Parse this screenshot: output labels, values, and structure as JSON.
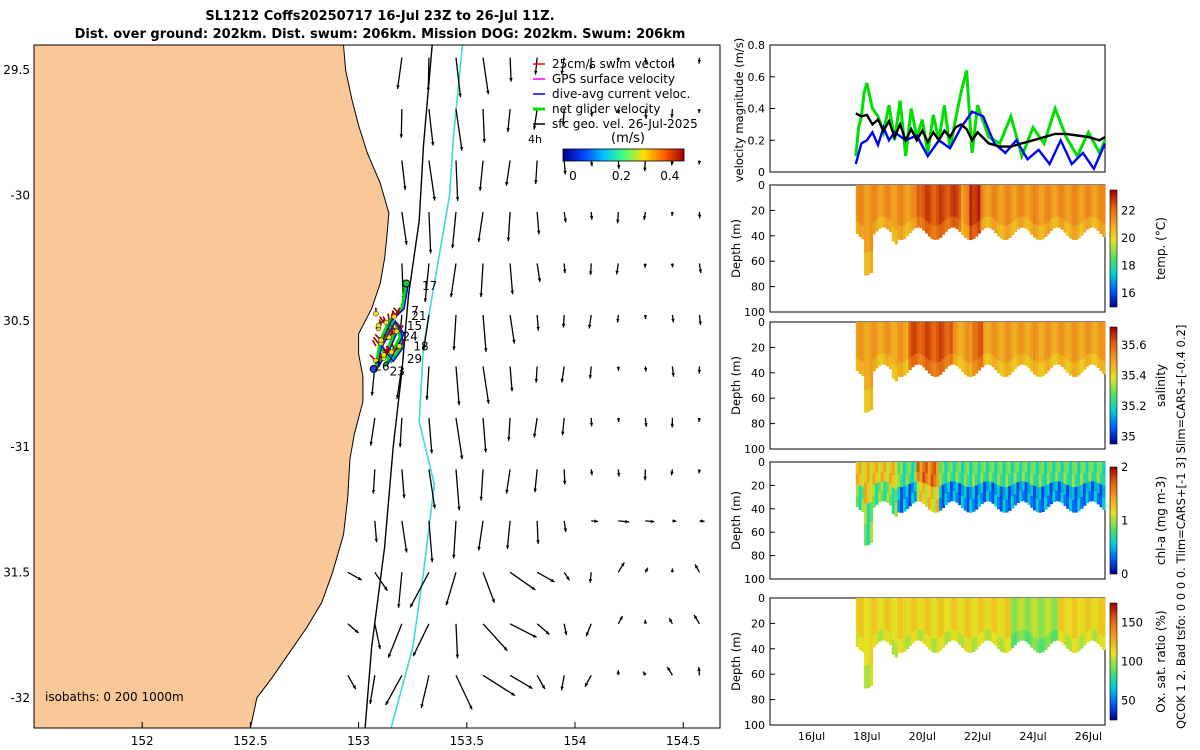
{
  "title": {
    "line1": "SL1212 Coffs20250717 16-Jul 23Z to 26-Jul 11Z.",
    "line2": "Dist. over ground: 202km. Dist. swum: 206km. Mission DOG: 202km. Swum: 206km"
  },
  "colors": {
    "land": "#fac898",
    "coastline": "#000000",
    "isobath_200": "#000000",
    "isobath_1000": "#40d8d8",
    "gps_velocity": "#ff00ff",
    "current": "#0000ff",
    "net_velocity": "#00e000",
    "swim": "#ff0000",
    "black": "#000000",
    "speed_cmap": [
      "#00008f",
      "#0040ff",
      "#00c0ff",
      "#40ff80",
      "#ffe000",
      "#ff6000",
      "#a00000"
    ],
    "temp_cmap": [
      "#00008f",
      "#0060ff",
      "#00d0d0",
      "#60e060",
      "#e8e020",
      "#f0a020",
      "#e06010",
      "#a00000"
    ]
  },
  "map": {
    "lon_ticks": [
      "152",
      "152.5",
      "153",
      "153.5",
      "154",
      "154.5"
    ],
    "lat_ticks": [
      "29.5",
      "-30",
      "30.5",
      "-31",
      "31.5",
      "-32"
    ],
    "lon_range": [
      151.5,
      154.67
    ],
    "lat_range": [
      -32.12,
      -29.4
    ],
    "isobaths_label": "isobaths: 0   200  1000m",
    "timer_label": "4h",
    "point_labels": [
      {
        "text": "17",
        "lon": 153.27,
        "lat": -30.36
      },
      {
        "text": "21",
        "lon": 153.22,
        "lat": -30.48
      },
      {
        "text": "7",
        "lon": 153.22,
        "lat": -30.46
      },
      {
        "text": "15",
        "lon": 153.2,
        "lat": -30.52
      },
      {
        "text": "24",
        "lon": 153.18,
        "lat": -30.56
      },
      {
        "text": "18",
        "lon": 153.23,
        "lat": -30.6
      },
      {
        "text": "29",
        "lon": 153.2,
        "lat": -30.65
      },
      {
        "text": "26",
        "lon": 153.05,
        "lat": -30.68
      },
      {
        "text": "23",
        "lon": 153.12,
        "lat": -30.7
      }
    ],
    "legend": [
      {
        "label": "25cm/s swim vector",
        "style": "swim"
      },
      {
        "label": "GPS surface velocity",
        "style": "gps_velocity"
      },
      {
        "label": "dive-avg current veloc.",
        "style": "current"
      },
      {
        "label": "net glider velocity",
        "style": "net_velocity"
      },
      {
        "label": "sfc geo. vel. 26-Jul-2025",
        "style": "black"
      }
    ],
    "colorbar": {
      "unit": "(m/s)",
      "ticks": [
        "0",
        "0.2",
        "0.4"
      ],
      "range": [
        0,
        0.5
      ]
    }
  },
  "chart_data": [
    {
      "type": "line",
      "title": "",
      "ylabel": "velocity magnitude (m/s)",
      "ylim": [
        0,
        0.8
      ],
      "y_ticks": [
        "0",
        "0.2",
        "0.4",
        "0.6",
        "0.8"
      ],
      "x_day_range": [
        14.5,
        26.6
      ],
      "series": [
        {
          "name": "net glider velocity",
          "color": "net_velocity",
          "x": [
            17.6,
            17.7,
            17.8,
            17.9,
            18.0,
            18.2,
            18.4,
            18.6,
            18.8,
            19.0,
            19.2,
            19.4,
            19.6,
            19.8,
            20.0,
            20.2,
            20.4,
            20.6,
            20.8,
            21.0,
            21.2,
            21.4,
            21.6,
            21.8,
            22.0,
            22.4,
            22.8,
            23.2,
            23.6,
            24.0,
            24.4,
            24.8,
            25.2,
            25.6,
            26.0,
            26.4,
            26.6
          ],
          "y": [
            0.1,
            0.28,
            0.35,
            0.5,
            0.56,
            0.4,
            0.35,
            0.25,
            0.42,
            0.2,
            0.45,
            0.1,
            0.4,
            0.22,
            0.33,
            0.12,
            0.36,
            0.2,
            0.42,
            0.15,
            0.33,
            0.5,
            0.64,
            0.12,
            0.42,
            0.22,
            0.18,
            0.35,
            0.1,
            0.28,
            0.18,
            0.4,
            0.22,
            0.1,
            0.25,
            0.12,
            0.2
          ]
        },
        {
          "name": "dive-avg current veloc.",
          "color": "current",
          "x": [
            17.6,
            17.8,
            18.0,
            18.2,
            18.4,
            18.6,
            18.8,
            19.0,
            19.4,
            19.8,
            20.2,
            20.6,
            21.0,
            21.4,
            21.8,
            22.2,
            22.6,
            23.0,
            23.4,
            23.8,
            24.2,
            24.6,
            25.0,
            25.4,
            25.8,
            26.2,
            26.6
          ],
          "y": [
            0.05,
            0.18,
            0.2,
            0.25,
            0.17,
            0.28,
            0.2,
            0.25,
            0.2,
            0.23,
            0.1,
            0.2,
            0.15,
            0.28,
            0.38,
            0.35,
            0.18,
            0.12,
            0.2,
            0.08,
            0.14,
            0.05,
            0.2,
            0.05,
            0.12,
            0.02,
            0.18
          ]
        },
        {
          "name": "sfc geo. vel.",
          "color": "black",
          "x": [
            17.6,
            17.8,
            18.0,
            18.2,
            18.4,
            18.6,
            18.8,
            19.0,
            19.2,
            19.4,
            19.6,
            19.8,
            20.0,
            20.2,
            20.4,
            20.6,
            20.8,
            21.0,
            21.2,
            21.4,
            21.6,
            21.8,
            22.0,
            22.4,
            22.8,
            23.2,
            23.6,
            24.0,
            24.4,
            24.8,
            25.2,
            25.6,
            26.0,
            26.4,
            26.6
          ],
          "y": [
            0.37,
            0.35,
            0.36,
            0.3,
            0.33,
            0.26,
            0.32,
            0.22,
            0.3,
            0.2,
            0.27,
            0.2,
            0.26,
            0.19,
            0.25,
            0.2,
            0.26,
            0.22,
            0.28,
            0.3,
            0.27,
            0.2,
            0.25,
            0.18,
            0.16,
            0.16,
            0.18,
            0.2,
            0.22,
            0.24,
            0.24,
            0.23,
            0.22,
            0.2,
            0.22
          ]
        }
      ]
    },
    {
      "type": "heatmap",
      "variable": "temp. (°C)",
      "ylabel": "Depth (m)",
      "ylim": [
        100,
        0
      ],
      "y_ticks": [
        "0",
        "20",
        "40",
        "60",
        "80",
        "100"
      ],
      "colorbar_ticks": [
        "22",
        "20",
        "18",
        "16"
      ],
      "crange": [
        15,
        23.5
      ],
      "base_value": 21.3,
      "bands": [
        [
          19.8,
          21.2,
          22.5
        ],
        [
          20.8,
          21.4,
          22.6
        ],
        [
          21.7,
          22.0,
          23.0
        ]
      ]
    },
    {
      "type": "heatmap",
      "variable": "salinity",
      "ylabel": "Depth (m)",
      "ylim": [
        100,
        0
      ],
      "y_ticks": [
        "0",
        "20",
        "40",
        "60",
        "80",
        "100"
      ],
      "colorbar_ticks": [
        "35.6",
        "35.4",
        "35.2",
        "35"
      ],
      "crange": [
        34.95,
        35.72
      ],
      "base_value": 35.5,
      "bands": [
        [
          19.5,
          21.0,
          35.62
        ],
        [
          21.8,
          22.1,
          35.6
        ]
      ]
    },
    {
      "type": "heatmap",
      "variable": "chl-a (mg m-3)",
      "ylabel": "Depth (m)",
      "ylim": [
        100,
        0
      ],
      "y_ticks": [
        "0",
        "20",
        "40",
        "60",
        "80",
        "100"
      ],
      "colorbar_ticks": [
        "2",
        "1",
        "0"
      ],
      "crange": [
        0,
        2
      ],
      "base_value": 0.8,
      "bands": [
        [
          17.6,
          19.0,
          1.25
        ],
        [
          19.8,
          20.5,
          1.6
        ]
      ]
    },
    {
      "type": "heatmap",
      "variable": "Ox. sat. ratio (%)",
      "ylabel": "Depth (m)",
      "ylim": [
        100,
        0
      ],
      "y_ticks": [
        "0",
        "20",
        "40",
        "60",
        "80",
        "100"
      ],
      "colorbar_ticks": [
        "150",
        "100",
        "50"
      ],
      "crange": [
        25,
        175
      ],
      "base_value": 115,
      "bands": [
        [
          23.2,
          24.8,
          100
        ]
      ]
    }
  ],
  "time_axis": {
    "ticks": [
      {
        "day": 16,
        "label": "16Jul"
      },
      {
        "day": 18,
        "label": "18Jul"
      },
      {
        "day": 20,
        "label": "20Jul"
      },
      {
        "day": 22,
        "label": "22Jul"
      },
      {
        "day": 24,
        "label": "24Jul"
      },
      {
        "day": 26,
        "label": "26Jul"
      }
    ]
  },
  "side_note": "QCOK 1  2. Bad tsfo:  0  0  0  0. Tlim=CARS+[-1 3] Slim=CARS+[-0.4 0.2]"
}
